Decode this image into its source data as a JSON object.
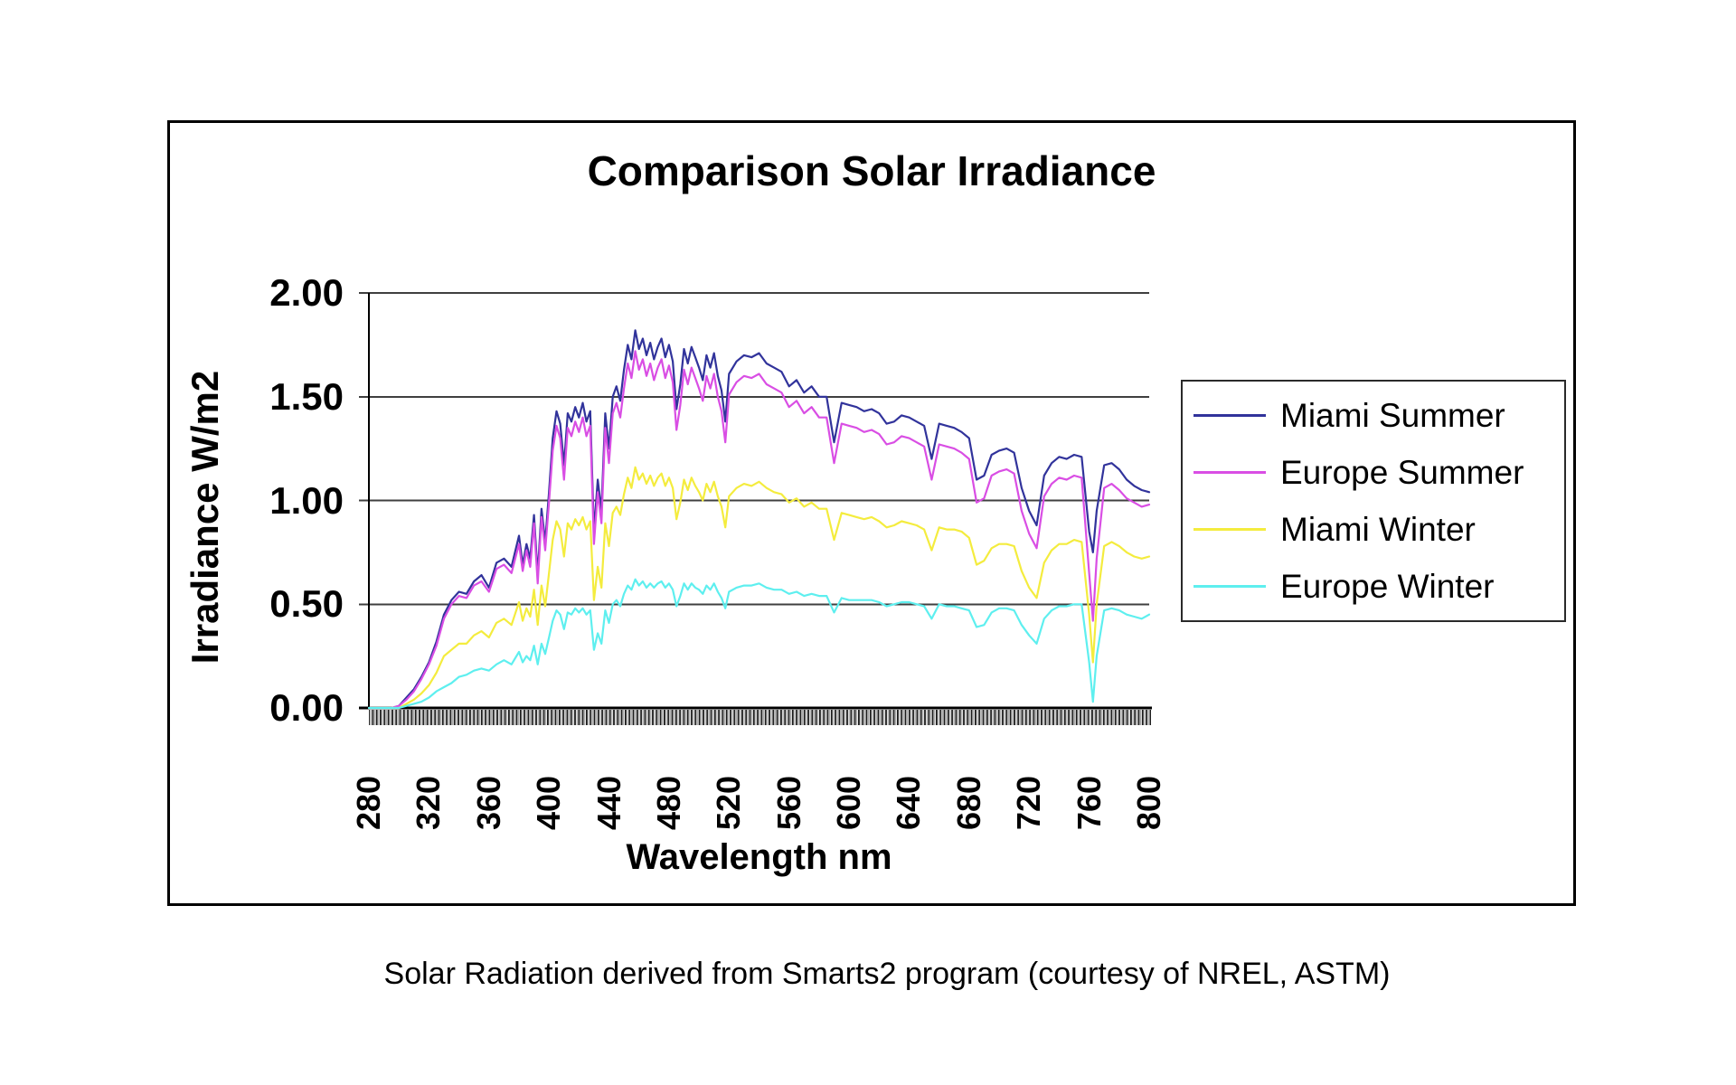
{
  "page": {
    "background": "#ffffff"
  },
  "caption": "Solar Radiation derived from Smarts2 program (courtesy of NREL, ASTM)",
  "chart_data": {
    "type": "line",
    "title": "Comparison Solar Irradiance",
    "xlabel": "Wavelength nm",
    "ylabel": "Irradiance W/m2",
    "xlim": [
      280,
      800
    ],
    "ylim": [
      0,
      2.0
    ],
    "grid": true,
    "legend_position": "right",
    "axis_color": "#000000",
    "gridline_color": "#3f3f3f",
    "x_ticks": [
      280,
      320,
      360,
      400,
      440,
      480,
      520,
      560,
      600,
      640,
      680,
      720,
      760,
      800
    ],
    "x_tick_labels": [
      "280",
      "320",
      "360",
      "400",
      "440",
      "480",
      "520",
      "560",
      "600",
      "640",
      "680",
      "720",
      "760",
      "800"
    ],
    "y_ticks": [
      0,
      0.5,
      1,
      1.5,
      2
    ],
    "y_tick_labels": [
      "0.00",
      "0.50",
      "1.00",
      "1.50",
      "2.00"
    ],
    "wavelengths_nm": [
      280,
      285,
      290,
      295,
      300,
      305,
      310,
      315,
      320,
      325,
      330,
      335,
      340,
      345,
      350,
      355,
      360,
      365,
      370,
      375,
      380,
      382.5,
      385,
      387.5,
      390,
      392.5,
      395,
      397.5,
      400,
      402.5,
      405,
      407.5,
      410,
      412.5,
      415,
      417.5,
      420,
      422.5,
      425,
      427.5,
      430,
      432.5,
      435,
      437.5,
      440,
      442.5,
      445,
      447.5,
      450,
      452.5,
      455,
      457.5,
      460,
      462.5,
      465,
      467.5,
      470,
      472.5,
      475,
      477.5,
      480,
      482.5,
      485,
      487.5,
      490,
      492.5,
      495,
      497.5,
      500,
      502.5,
      505,
      507.5,
      510,
      512.5,
      515,
      517.5,
      520,
      525,
      530,
      535,
      540,
      545,
      550,
      555,
      560,
      565,
      570,
      575,
      580,
      585,
      590,
      595,
      600,
      605,
      610,
      615,
      620,
      625,
      630,
      635,
      640,
      645,
      650,
      655,
      660,
      665,
      670,
      675,
      680,
      685,
      690,
      695,
      700,
      705,
      710,
      715,
      720,
      725,
      730,
      735,
      740,
      745,
      750,
      755,
      760,
      762.5,
      765,
      770,
      775,
      780,
      785,
      790,
      795,
      800
    ],
    "series": [
      {
        "name": "Miami Summer",
        "color": "#31339B",
        "values": [
          0,
          0,
          0,
          0,
          0.01,
          0.05,
          0.09,
          0.15,
          0.22,
          0.32,
          0.45,
          0.52,
          0.56,
          0.55,
          0.61,
          0.64,
          0.58,
          0.7,
          0.72,
          0.68,
          0.83,
          0.69,
          0.79,
          0.72,
          0.93,
          0.64,
          0.96,
          0.8,
          1.04,
          1.3,
          1.43,
          1.37,
          1.17,
          1.42,
          1.38,
          1.45,
          1.4,
          1.47,
          1.38,
          1.43,
          0.85,
          1.1,
          0.95,
          1.42,
          1.25,
          1.5,
          1.55,
          1.48,
          1.63,
          1.75,
          1.68,
          1.82,
          1.73,
          1.78,
          1.7,
          1.76,
          1.68,
          1.74,
          1.78,
          1.69,
          1.75,
          1.67,
          1.44,
          1.56,
          1.73,
          1.66,
          1.74,
          1.69,
          1.64,
          1.58,
          1.7,
          1.64,
          1.71,
          1.6,
          1.53,
          1.38,
          1.61,
          1.67,
          1.7,
          1.69,
          1.71,
          1.66,
          1.64,
          1.62,
          1.55,
          1.58,
          1.52,
          1.55,
          1.5,
          1.5,
          1.28,
          1.47,
          1.46,
          1.45,
          1.43,
          1.44,
          1.42,
          1.37,
          1.38,
          1.41,
          1.4,
          1.38,
          1.36,
          1.2,
          1.37,
          1.36,
          1.35,
          1.33,
          1.3,
          1.1,
          1.12,
          1.22,
          1.24,
          1.25,
          1.23,
          1.06,
          0.95,
          0.88,
          1.12,
          1.18,
          1.21,
          1.2,
          1.22,
          1.21,
          0.85,
          0.75,
          0.95,
          1.17,
          1.18,
          1.15,
          1.1,
          1.07,
          1.05,
          1.04
        ]
      },
      {
        "name": "Europe Summer",
        "color": "#D94EE4",
        "values": [
          0,
          0,
          0,
          0,
          0.01,
          0.04,
          0.08,
          0.14,
          0.21,
          0.3,
          0.43,
          0.5,
          0.54,
          0.53,
          0.59,
          0.61,
          0.56,
          0.67,
          0.69,
          0.65,
          0.79,
          0.66,
          0.76,
          0.68,
          0.89,
          0.6,
          0.92,
          0.76,
          0.99,
          1.24,
          1.36,
          1.3,
          1.1,
          1.35,
          1.31,
          1.38,
          1.33,
          1.4,
          1.31,
          1.36,
          0.79,
          1.04,
          0.89,
          1.35,
          1.18,
          1.42,
          1.47,
          1.4,
          1.54,
          1.66,
          1.59,
          1.72,
          1.63,
          1.68,
          1.6,
          1.66,
          1.58,
          1.64,
          1.68,
          1.59,
          1.65,
          1.57,
          1.34,
          1.46,
          1.63,
          1.56,
          1.64,
          1.59,
          1.54,
          1.48,
          1.6,
          1.54,
          1.61,
          1.5,
          1.43,
          1.28,
          1.51,
          1.57,
          1.6,
          1.59,
          1.61,
          1.56,
          1.54,
          1.52,
          1.45,
          1.48,
          1.42,
          1.45,
          1.4,
          1.4,
          1.18,
          1.37,
          1.36,
          1.35,
          1.33,
          1.34,
          1.32,
          1.27,
          1.28,
          1.31,
          1.3,
          1.28,
          1.26,
          1.1,
          1.27,
          1.26,
          1.25,
          1.23,
          1.2,
          0.99,
          1.01,
          1.12,
          1.14,
          1.15,
          1.13,
          0.95,
          0.84,
          0.77,
          1.02,
          1.08,
          1.11,
          1.1,
          1.12,
          1.11,
          0.65,
          0.42,
          0.72,
          1.06,
          1.08,
          1.05,
          1.01,
          0.99,
          0.97,
          0.98
        ]
      },
      {
        "name": "Miami Winter",
        "color": "#F4EC3E",
        "values": [
          0,
          0,
          0,
          0,
          0,
          0.02,
          0.04,
          0.07,
          0.11,
          0.17,
          0.25,
          0.28,
          0.31,
          0.31,
          0.35,
          0.37,
          0.34,
          0.41,
          0.43,
          0.4,
          0.51,
          0.42,
          0.48,
          0.44,
          0.57,
          0.4,
          0.59,
          0.49,
          0.65,
          0.81,
          0.9,
          0.86,
          0.73,
          0.89,
          0.86,
          0.91,
          0.88,
          0.92,
          0.86,
          0.9,
          0.52,
          0.68,
          0.58,
          0.89,
          0.78,
          0.94,
          0.97,
          0.93,
          1.03,
          1.11,
          1.06,
          1.16,
          1.1,
          1.13,
          1.08,
          1.12,
          1.07,
          1.11,
          1.13,
          1.07,
          1.11,
          1.06,
          0.91,
          0.99,
          1.1,
          1.05,
          1.11,
          1.07,
          1.04,
          1.0,
          1.08,
          1.04,
          1.09,
          1.02,
          0.97,
          0.87,
          1.02,
          1.06,
          1.08,
          1.07,
          1.09,
          1.06,
          1.04,
          1.03,
          0.99,
          1.01,
          0.97,
          0.99,
          0.96,
          0.96,
          0.81,
          0.94,
          0.93,
          0.92,
          0.91,
          0.92,
          0.9,
          0.87,
          0.88,
          0.9,
          0.89,
          0.88,
          0.86,
          0.76,
          0.87,
          0.86,
          0.86,
          0.85,
          0.82,
          0.69,
          0.71,
          0.77,
          0.79,
          0.79,
          0.78,
          0.66,
          0.58,
          0.53,
          0.7,
          0.76,
          0.79,
          0.79,
          0.81,
          0.8,
          0.45,
          0.22,
          0.5,
          0.78,
          0.8,
          0.78,
          0.75,
          0.73,
          0.72,
          0.73
        ]
      },
      {
        "name": "Europe Winter",
        "color": "#5EEFEF",
        "values": [
          0,
          0,
          0,
          0,
          0,
          0.01,
          0.02,
          0.03,
          0.05,
          0.08,
          0.1,
          0.12,
          0.15,
          0.16,
          0.18,
          0.19,
          0.18,
          0.21,
          0.23,
          0.21,
          0.27,
          0.22,
          0.25,
          0.23,
          0.3,
          0.21,
          0.31,
          0.26,
          0.34,
          0.42,
          0.47,
          0.45,
          0.38,
          0.46,
          0.45,
          0.48,
          0.46,
          0.48,
          0.45,
          0.47,
          0.28,
          0.36,
          0.31,
          0.47,
          0.41,
          0.5,
          0.52,
          0.49,
          0.55,
          0.59,
          0.57,
          0.62,
          0.59,
          0.61,
          0.58,
          0.6,
          0.58,
          0.6,
          0.61,
          0.58,
          0.6,
          0.57,
          0.49,
          0.54,
          0.6,
          0.57,
          0.6,
          0.58,
          0.57,
          0.55,
          0.59,
          0.57,
          0.6,
          0.56,
          0.53,
          0.48,
          0.56,
          0.58,
          0.59,
          0.59,
          0.6,
          0.58,
          0.57,
          0.57,
          0.55,
          0.56,
          0.54,
          0.55,
          0.54,
          0.54,
          0.46,
          0.53,
          0.52,
          0.52,
          0.52,
          0.52,
          0.51,
          0.49,
          0.5,
          0.51,
          0.51,
          0.5,
          0.49,
          0.43,
          0.5,
          0.49,
          0.49,
          0.48,
          0.47,
          0.39,
          0.4,
          0.46,
          0.48,
          0.48,
          0.47,
          0.4,
          0.35,
          0.31,
          0.43,
          0.47,
          0.49,
          0.49,
          0.5,
          0.5,
          0.22,
          0.03,
          0.25,
          0.47,
          0.48,
          0.47,
          0.45,
          0.44,
          0.43,
          0.45
        ]
      }
    ]
  }
}
